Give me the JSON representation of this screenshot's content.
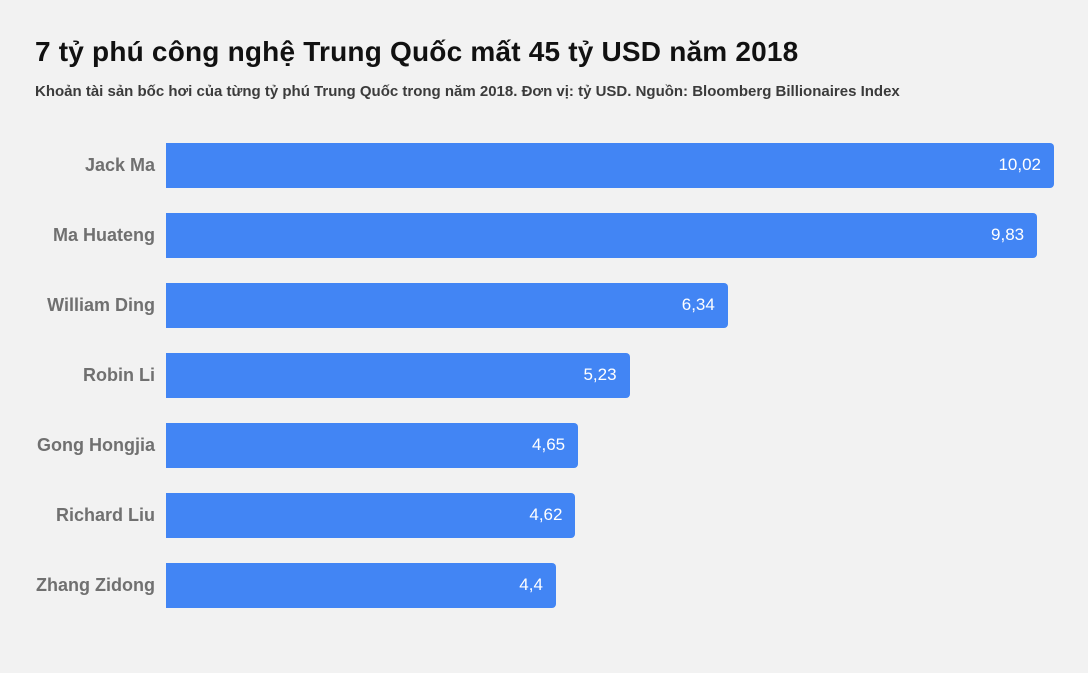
{
  "header": {
    "title": "7 tỷ phú công nghệ Trung Quốc mất 45 tỷ USD năm 2018",
    "subtitle": "Khoản tài sản bốc hơi của từng tỷ phú Trung Quốc trong năm 2018. Đơn vị: tỷ USD. Nguồn: Bloomberg Billionaires Index"
  },
  "chart_data": {
    "type": "bar",
    "orientation": "horizontal",
    "title": "7 tỷ phú công nghệ Trung Quốc mất 45 tỷ USD năm 2018",
    "subtitle": "Khoản tài sản bốc hơi của từng tỷ phú Trung Quốc trong năm 2018. Đơn vị: tỷ USD. Nguồn: Bloomberg Billionaires Index",
    "categories": [
      "Jack Ma",
      "Ma Huateng",
      "William Ding",
      "Robin Li",
      "Gong Hongjia",
      "Richard Liu",
      "Zhang Zidong"
    ],
    "values": [
      10.02,
      9.83,
      6.34,
      5.23,
      4.65,
      4.62,
      4.4
    ],
    "value_labels": [
      "10,02",
      "9,83",
      "6,34",
      "5,23",
      "4,65",
      "4,62",
      "4,4"
    ],
    "unit": "tỷ USD",
    "source": "Bloomberg Billionaires Index",
    "xlabel": "",
    "ylabel": "",
    "xlim": [
      0,
      10.02
    ],
    "grid": false,
    "legend": false,
    "bar_color": "#4285f4",
    "value_label_color": "#ffffff",
    "category_label_color": "#707070",
    "background_color": "#f2f2f2"
  }
}
